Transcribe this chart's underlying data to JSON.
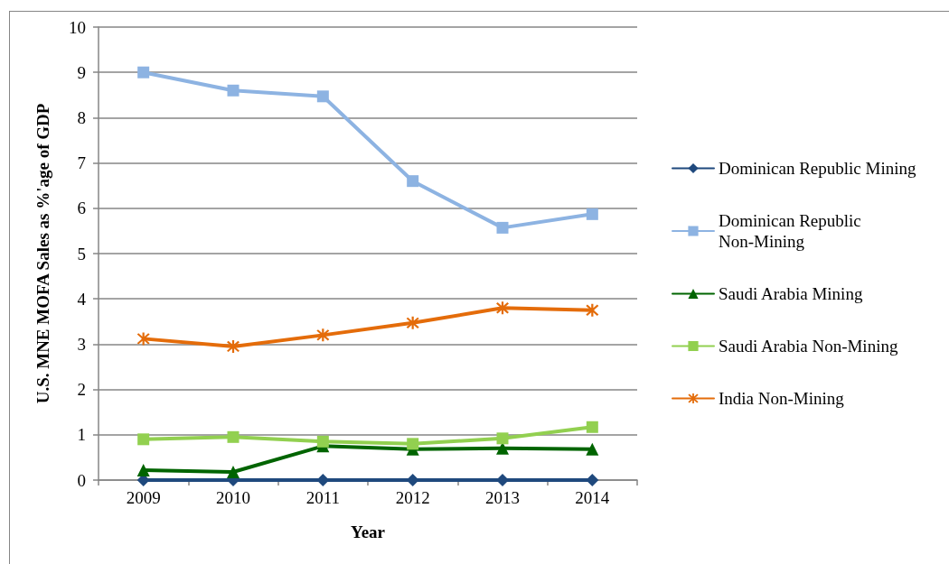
{
  "chart_data": {
    "type": "line",
    "xlabel": "Year",
    "ylabel": "U.S. MNE MOFA Sales as %'age of GDP",
    "categories": [
      "2009",
      "2010",
      "2011",
      "2012",
      "2013",
      "2014"
    ],
    "ylim": [
      0,
      10
    ],
    "yticks": [
      0,
      1,
      2,
      3,
      4,
      5,
      6,
      7,
      8,
      9,
      10
    ],
    "grid": "y",
    "legend": "right",
    "line_style": "solid",
    "series": [
      {
        "name": "Dominican Republic Mining",
        "color": "#1f497d",
        "marker": "diamond",
        "values": [
          0,
          0,
          0,
          0,
          0,
          0
        ]
      },
      {
        "name": "Dominican Republic Non-Mining",
        "color": "#8db3e2",
        "marker": "square",
        "values": [
          9.0,
          8.6,
          8.47,
          6.6,
          5.57,
          5.87
        ]
      },
      {
        "name": "Saudi Arabia Mining",
        "color": "#006400",
        "marker": "triangle",
        "values": [
          0.22,
          0.18,
          0.75,
          0.68,
          0.7,
          0.68
        ]
      },
      {
        "name": "Saudi Arabia Non-Mining",
        "color": "#92d050",
        "marker": "square",
        "values": [
          0.9,
          0.95,
          0.85,
          0.8,
          0.92,
          1.17
        ]
      },
      {
        "name": "India Non-Mining",
        "color": "#e46c0a",
        "marker": "cross",
        "values": [
          3.12,
          2.95,
          3.2,
          3.47,
          3.8,
          3.75
        ]
      }
    ]
  }
}
